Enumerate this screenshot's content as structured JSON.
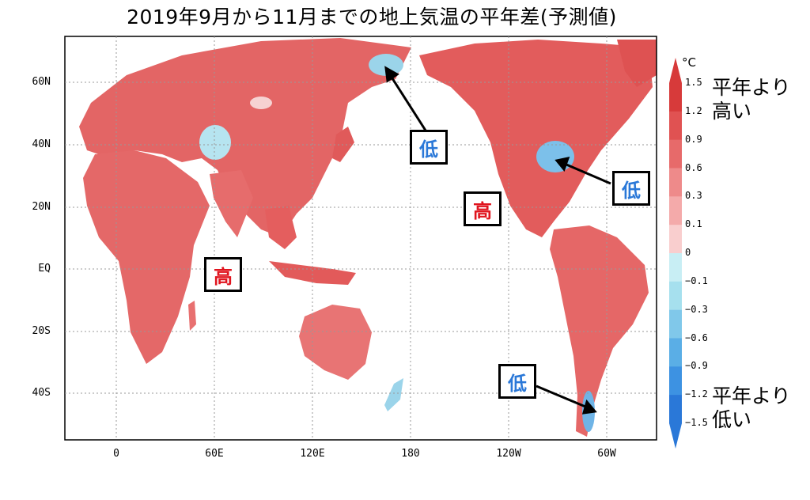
{
  "title": "2019年9月から11月までの地上気温の平年差(予測値)",
  "map": {
    "y_axis_labels": [
      "60N",
      "40N",
      "20N",
      "EQ",
      "20S",
      "40S"
    ],
    "x_axis_labels": [
      "0",
      "60E",
      "120E",
      "180",
      "120W",
      "60W"
    ],
    "callouts": {
      "low_siberia": "低",
      "low_us_east": "低",
      "low_south_america": "低",
      "high_pacific": "高",
      "high_indian_ocean": "高"
    }
  },
  "colorbar": {
    "unit": "°C",
    "ticks": [
      "1.5",
      "1.2",
      "0.9",
      "0.6",
      "0.3",
      "0.1",
      "0",
      "−0.1",
      "−0.3",
      "−0.6",
      "−0.9",
      "−1.2",
      "−1.5"
    ],
    "colors": [
      "#d73a3a",
      "#e05252",
      "#e76a6a",
      "#ee8a8a",
      "#f4aaaa",
      "#f9cece",
      "#c8eef4",
      "#a6e0ee",
      "#80c8ea",
      "#5aaee6",
      "#3d92e2",
      "#2a78d8"
    ],
    "top_note_line1": "平年より",
    "top_note_line2": "高い",
    "bottom_note_line1": "平年より",
    "bottom_note_line2": "低い"
  }
}
